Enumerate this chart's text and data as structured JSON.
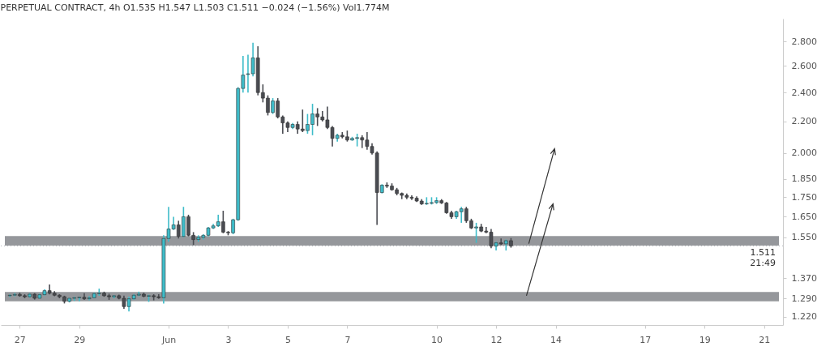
{
  "chart_data": {
    "type": "candlestick",
    "title": "PERPETUAL CONTRACT, 4h   O1.535  H1.547  L1.503  C1.511  −0.024 (−1.56%)  Vol1.774M",
    "x": [
      "--05-26T16:00",
      "--05-26T20:00",
      "--05-27T00:00",
      "--05-27T04:00",
      "--05-27T08:00",
      "--05-27T12:00",
      "--05-27T16:00",
      "--05-27T20:00",
      "--05-28T00:00",
      "--05-28T04:00",
      "--05-28T08:00",
      "--05-28T12:00",
      "--05-28T16:00",
      "--05-28T20:00",
      "--05-29T00:00",
      "--05-29T04:00",
      "--05-29T08:00",
      "--05-29T12:00",
      "--05-29T16:00",
      "--05-29T20:00",
      "--05-30T00:00",
      "--05-30T04:00",
      "--05-30T08:00",
      "--05-30T12:00",
      "--05-30T16:00",
      "--05-30T20:00",
      "--05-31T00:00",
      "--05-31T04:00",
      "--05-31T08:00",
      "--05-31T12:00",
      "--05-31T16:00",
      "--05-31T20:00",
      "--06-01T00:00",
      "--06-01T04:00",
      "--06-01T08:00",
      "--06-01T12:00",
      "--06-01T16:00",
      "--06-01T20:00",
      "--06-02T00:00",
      "--06-02T04:00",
      "--06-02T08:00",
      "--06-02T12:00",
      "--06-02T16:00",
      "--06-02T20:00",
      "--06-03T00:00",
      "--06-03T04:00",
      "--06-03T08:00",
      "--06-03T12:00",
      "--06-03T16:00",
      "--06-03T20:00",
      "--06-04T00:00",
      "--06-04T04:00",
      "--06-04T08:00",
      "--06-04T12:00",
      "--06-04T16:00",
      "--06-04T20:00",
      "--06-05T00:00",
      "--06-05T04:00",
      "--06-05T08:00",
      "--06-05T12:00",
      "--06-05T16:00",
      "--06-05T20:00",
      "--06-06T00:00",
      "--06-06T04:00",
      "--06-06T08:00",
      "--06-06T12:00",
      "--06-06T16:00",
      "--06-06T20:00",
      "--06-07T00:00",
      "--06-07T04:00",
      "--06-07T08:00",
      "--06-07T12:00",
      "--06-07T16:00",
      "--06-07T20:00",
      "--06-08T00:00",
      "--06-08T04:00",
      "--06-08T08:00",
      "--06-08T12:00",
      "--06-08T16:00",
      "--06-08T20:00",
      "--06-09T00:00",
      "--06-09T04:00",
      "--06-09T08:00",
      "--06-09T12:00",
      "--06-09T16:00",
      "--06-09T20:00",
      "--06-10T00:00",
      "--06-10T04:00",
      "--06-10T08:00",
      "--06-10T12:00",
      "--06-10T16:00",
      "--06-10T20:00",
      "--06-11T00:00",
      "--06-11T04:00",
      "--06-11T08:00",
      "--06-11T12:00",
      "--06-11T16:00",
      "--06-11T20:00",
      "--06-12T00:00",
      "--06-12T04:00",
      "--06-12T08:00",
      "--06-12T12:00"
    ],
    "ohlc": [
      [
        1.3,
        1.305,
        1.295,
        1.302
      ],
      [
        1.302,
        1.31,
        1.298,
        1.305
      ],
      [
        1.305,
        1.312,
        1.296,
        1.3
      ],
      [
        1.3,
        1.306,
        1.29,
        1.296
      ],
      [
        1.296,
        1.31,
        1.292,
        1.306
      ],
      [
        1.306,
        1.31,
        1.285,
        1.29
      ],
      [
        1.29,
        1.308,
        1.288,
        1.304
      ],
      [
        1.304,
        1.325,
        1.3,
        1.32
      ],
      [
        1.32,
        1.345,
        1.305,
        1.31
      ],
      [
        1.31,
        1.318,
        1.298,
        1.302
      ],
      [
        1.302,
        1.306,
        1.29,
        1.296
      ],
      [
        1.296,
        1.3,
        1.27,
        1.278
      ],
      [
        1.278,
        1.292,
        1.274,
        1.29
      ],
      [
        1.29,
        1.296,
        1.28,
        1.292
      ],
      [
        1.292,
        1.296,
        1.278,
        1.294
      ],
      [
        1.294,
        1.31,
        1.284,
        1.288
      ],
      [
        1.288,
        1.298,
        1.282,
        1.292
      ],
      [
        1.292,
        1.312,
        1.29,
        1.308
      ],
      [
        1.308,
        1.328,
        1.3,
        1.31
      ],
      [
        1.31,
        1.316,
        1.296,
        1.3
      ],
      [
        1.3,
        1.308,
        1.284,
        1.296
      ],
      [
        1.296,
        1.302,
        1.29,
        1.3
      ],
      [
        1.3,
        1.304,
        1.286,
        1.29
      ],
      [
        1.29,
        1.3,
        1.25,
        1.258
      ],
      [
        1.258,
        1.296,
        1.24,
        1.288
      ],
      [
        1.288,
        1.306,
        1.284,
        1.302
      ],
      [
        1.302,
        1.316,
        1.298,
        1.306
      ],
      [
        1.306,
        1.312,
        1.294,
        1.298
      ],
      [
        1.298,
        1.304,
        1.276,
        1.3
      ],
      [
        1.3,
        1.306,
        1.282,
        1.296
      ],
      [
        1.296,
        1.306,
        1.288,
        1.292
      ],
      [
        1.292,
        1.56,
        1.27,
        1.545
      ],
      [
        1.545,
        1.7,
        1.53,
        1.59
      ],
      [
        1.59,
        1.65,
        1.585,
        1.61
      ],
      [
        1.61,
        1.63,
        1.545,
        1.555
      ],
      [
        1.555,
        1.7,
        1.55,
        1.65
      ],
      [
        1.65,
        1.66,
        1.555,
        1.56
      ],
      [
        1.56,
        1.575,
        1.515,
        1.54
      ],
      [
        1.54,
        1.56,
        1.53,
        1.55
      ],
      [
        1.55,
        1.565,
        1.54,
        1.56
      ],
      [
        1.56,
        1.6,
        1.555,
        1.595
      ],
      [
        1.595,
        1.615,
        1.59,
        1.605
      ],
      [
        1.605,
        1.66,
        1.6,
        1.625
      ],
      [
        1.625,
        1.68,
        1.57,
        1.575
      ],
      [
        1.575,
        1.58,
        1.56,
        1.572
      ],
      [
        1.572,
        1.64,
        1.565,
        1.635
      ],
      [
        1.635,
        2.44,
        1.63,
        2.43
      ],
      [
        2.43,
        2.68,
        2.4,
        2.53
      ],
      [
        2.535,
        2.69,
        2.4,
        2.54
      ],
      [
        2.54,
        2.79,
        2.52,
        2.665
      ],
      [
        2.665,
        2.76,
        2.38,
        2.4
      ],
      [
        2.4,
        2.46,
        2.33,
        2.36
      ],
      [
        2.36,
        2.38,
        2.24,
        2.26
      ],
      [
        2.26,
        2.36,
        2.25,
        2.34
      ],
      [
        2.34,
        2.36,
        2.22,
        2.23
      ],
      [
        2.23,
        2.24,
        2.12,
        2.19
      ],
      [
        2.19,
        2.2,
        2.13,
        2.16
      ],
      [
        2.16,
        2.19,
        2.15,
        2.18
      ],
      [
        2.18,
        2.2,
        2.12,
        2.15
      ],
      [
        2.15,
        2.28,
        2.13,
        2.14
      ],
      [
        2.14,
        2.25,
        2.12,
        2.18
      ],
      [
        2.18,
        2.32,
        2.11,
        2.25
      ],
      [
        2.25,
        2.29,
        2.17,
        2.23
      ],
      [
        2.23,
        2.27,
        2.2,
        2.21
      ],
      [
        2.21,
        2.3,
        2.15,
        2.16
      ],
      [
        2.16,
        2.17,
        2.04,
        2.09
      ],
      [
        2.09,
        2.12,
        2.07,
        2.11
      ],
      [
        2.11,
        2.13,
        2.09,
        2.1
      ],
      [
        2.1,
        2.14,
        2.07,
        2.08
      ],
      [
        2.08,
        2.1,
        2.075,
        2.09
      ],
      [
        2.09,
        2.12,
        2.04,
        2.095
      ],
      [
        2.095,
        2.11,
        2.03,
        2.08
      ],
      [
        2.08,
        2.13,
        2.02,
        2.04
      ],
      [
        2.04,
        2.06,
        1.99,
        2.0
      ],
      [
        2.0,
        2.01,
        1.61,
        1.775
      ],
      [
        1.775,
        1.82,
        1.77,
        1.815
      ],
      [
        1.815,
        1.83,
        1.8,
        1.81
      ],
      [
        1.81,
        1.825,
        1.785,
        1.79
      ],
      [
        1.79,
        1.8,
        1.76,
        1.77
      ],
      [
        1.77,
        1.775,
        1.74,
        1.76
      ],
      [
        1.76,
        1.77,
        1.74,
        1.75
      ],
      [
        1.75,
        1.76,
        1.735,
        1.745
      ],
      [
        1.745,
        1.755,
        1.725,
        1.73
      ],
      [
        1.73,
        1.74,
        1.71,
        1.715
      ],
      [
        1.715,
        1.75,
        1.71,
        1.718
      ],
      [
        1.718,
        1.75,
        1.712,
        1.722
      ],
      [
        1.722,
        1.75,
        1.715,
        1.732
      ],
      [
        1.732,
        1.74,
        1.715,
        1.72
      ],
      [
        1.72,
        1.725,
        1.665,
        1.67
      ],
      [
        1.67,
        1.68,
        1.64,
        1.65
      ],
      [
        1.65,
        1.68,
        1.64,
        1.675
      ],
      [
        1.675,
        1.7,
        1.62,
        1.69
      ],
      [
        1.69,
        1.7,
        1.62,
        1.63
      ],
      [
        1.63,
        1.64,
        1.59,
        1.595
      ],
      [
        1.595,
        1.62,
        1.525,
        1.6
      ],
      [
        1.6,
        1.615,
        1.575,
        1.58
      ],
      [
        1.58,
        1.6,
        1.57,
        1.575
      ],
      [
        1.575,
        1.59,
        1.5,
        1.51
      ],
      [
        1.51,
        1.53,
        1.49,
        1.525
      ],
      [
        1.525,
        1.545,
        1.515,
        1.52
      ],
      [
        1.52,
        1.54,
        1.49,
        1.535
      ],
      [
        1.535,
        1.547,
        1.503,
        1.511
      ]
    ],
    "colors": [
      "#3ebcc9",
      "#3ebcc9",
      "#4a4c52",
      "#4a4c52",
      "#3ebcc9",
      "#4a4c52",
      "#3ebcc9",
      "#3ebcc9",
      "#4a4c52",
      "#4a4c52",
      "#4a4c52",
      "#4a4c52",
      "#3ebcc9",
      "#3ebcc9",
      "#3ebcc9",
      "#4a4c52",
      "#3ebcc9",
      "#3ebcc9",
      "#3ebcc9",
      "#4a4c52",
      "#4a4c52",
      "#3ebcc9",
      "#4a4c52",
      "#4a4c52",
      "#3ebcc9",
      "#3ebcc9",
      "#3ebcc9",
      "#4a4c52",
      "#3ebcc9",
      "#4a4c52",
      "#4a4c52",
      "#3ebcc9",
      "#3ebcc9",
      "#3ebcc9",
      "#4a4c52",
      "#3ebcc9",
      "#4a4c52",
      "#4a4c52",
      "#3ebcc9",
      "#3ebcc9",
      "#3ebcc9",
      "#3ebcc9",
      "#3ebcc9",
      "#4a4c52",
      "#4a4c52",
      "#3ebcc9",
      "#3ebcc9",
      "#3ebcc9",
      "#3ebcc9",
      "#3ebcc9",
      "#4a4c52",
      "#4a4c52",
      "#4a4c52",
      "#3ebcc9",
      "#4a4c52",
      "#4a4c52",
      "#4a4c52",
      "#3ebcc9",
      "#4a4c52",
      "#4a4c52",
      "#3ebcc9",
      "#3ebcc9",
      "#4a4c52",
      "#4a4c52",
      "#4a4c52",
      "#4a4c52",
      "#3ebcc9",
      "#4a4c52",
      "#4a4c52",
      "#3ebcc9",
      "#3ebcc9",
      "#4a4c52",
      "#4a4c52",
      "#4a4c52",
      "#4a4c52",
      "#3ebcc9",
      "#4a4c52",
      "#4a4c52",
      "#4a4c52",
      "#4a4c52",
      "#4a4c52",
      "#4a4c52",
      "#4a4c52",
      "#4a4c52",
      "#3ebcc9",
      "#3ebcc9",
      "#3ebcc9",
      "#4a4c52",
      "#4a4c52",
      "#4a4c52",
      "#3ebcc9",
      "#3ebcc9",
      "#4a4c52",
      "#4a4c52",
      "#3ebcc9",
      "#4a4c52",
      "#4a4c52",
      "#4a4c52",
      "#3ebcc9",
      "#4a4c52",
      "#3ebcc9",
      "#4a4c52"
    ],
    "xlim": [
      "--05-26T12:00",
      "--06-21T12:00"
    ],
    "xticks": [
      {
        "value": "--05-27",
        "label": "27"
      },
      {
        "value": "--05-29",
        "label": "29"
      },
      {
        "value": "--06-01",
        "label": "Jun"
      },
      {
        "value": "--06-03",
        "label": "3"
      },
      {
        "value": "--06-05",
        "label": "5"
      },
      {
        "value": "--06-07",
        "label": "7"
      },
      {
        "value": "--06-10",
        "label": "10"
      },
      {
        "value": "--06-12",
        "label": "12"
      },
      {
        "value": "--06-14",
        "label": "14"
      },
      {
        "value": "--06-17",
        "label": "17"
      },
      {
        "value": "--06-19",
        "label": "19"
      },
      {
        "value": "--06-21",
        "label": "21"
      }
    ],
    "ylim": [
      1.19,
      3.0
    ],
    "yticks": [
      {
        "value": 1.22,
        "label": "1.220"
      },
      {
        "value": 1.29,
        "label": "1.290"
      },
      {
        "value": 1.37,
        "label": "1.370"
      },
      {
        "value": 1.55,
        "label": "1.550"
      },
      {
        "value": 1.65,
        "label": "1.650"
      },
      {
        "value": 1.75,
        "label": "1.750"
      },
      {
        "value": 1.85,
        "label": "1.850"
      },
      {
        "value": 2.0,
        "label": "2.000"
      },
      {
        "value": 2.2,
        "label": "2.200"
      },
      {
        "value": 2.4,
        "label": "2.400"
      },
      {
        "value": 2.6,
        "label": "2.600"
      },
      {
        "value": 2.8,
        "label": "2.800"
      }
    ],
    "log": "y",
    "bands": [
      {
        "axis": "y",
        "from": 1.512,
        "to": 1.556,
        "color": "#7b7d82"
      },
      {
        "axis": "y",
        "from": 1.278,
        "to": 1.315,
        "color": "#7b7d82"
      }
    ],
    "ref_lines": [
      {
        "axis": "y",
        "value": 1.511,
        "label": "1.511",
        "color": "#b0b3ba",
        "line_style": "dotted"
      }
    ],
    "annotations": [
      "21:49"
    ]
  }
}
